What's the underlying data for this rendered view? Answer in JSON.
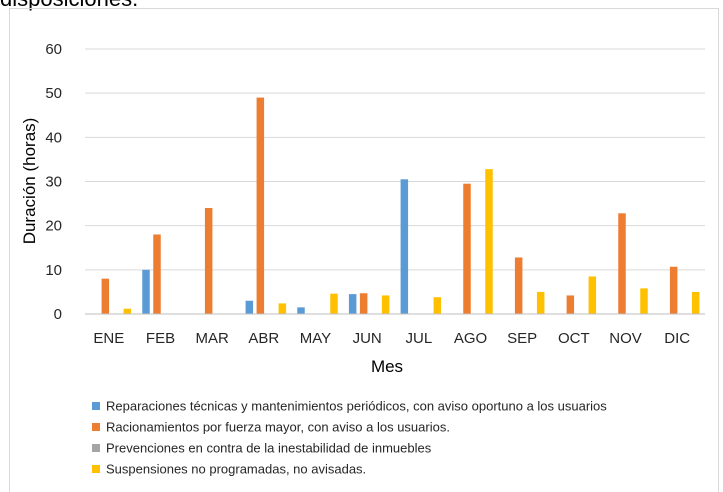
{
  "page": {
    "cropped_text": "disposiciones."
  },
  "chart_data": {
    "type": "bar",
    "title": "",
    "xlabel": "Mes",
    "ylabel": "Duración (horas)",
    "ylim": [
      0,
      60
    ],
    "yticks": [
      0,
      10,
      20,
      30,
      40,
      50,
      60
    ],
    "grid": true,
    "legend_position": "bottom",
    "categories": [
      "ENE",
      "FEB",
      "MAR",
      "ABR",
      "MAY",
      "JUN",
      "JUL",
      "AGO",
      "SEP",
      "OCT",
      "NOV",
      "DIC"
    ],
    "series": [
      {
        "name": "Reparaciones técnicas y mantenimientos periódicos, con aviso oportuno a los usuarios",
        "color": "#5B9BD5",
        "values": [
          0,
          10,
          0,
          3,
          1.5,
          4.5,
          30.5,
          0,
          0,
          0,
          0,
          0
        ]
      },
      {
        "name": "Racionamientos por fuerza mayor, con aviso a los usuarios.",
        "color": "#ED7D31",
        "values": [
          8,
          18,
          24,
          49,
          0,
          4.7,
          0,
          29.5,
          12.8,
          4.2,
          22.8,
          10.7
        ]
      },
      {
        "name": "Prevenciones en contra de la inestabilidad de inmuebles",
        "color": "#A5A5A5",
        "values": [
          0,
          0,
          0,
          0,
          0,
          0,
          0,
          0,
          0,
          0,
          0,
          0
        ]
      },
      {
        "name": "Suspensiones no programadas, no avisadas.",
        "color": "#FFC000",
        "values": [
          1.2,
          0,
          0,
          2.4,
          4.6,
          4.2,
          3.8,
          32.8,
          5,
          8.5,
          5.8,
          5
        ]
      }
    ]
  }
}
